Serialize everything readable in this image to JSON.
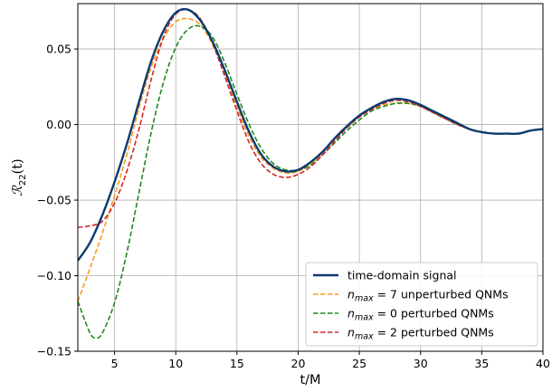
{
  "chart_data": {
    "type": "line",
    "xlabel": "t/M",
    "ylabel": "R22(t)",
    "ylabel_parts": {
      "main": "ℛ",
      "sub": "22",
      "arg": "(t)"
    },
    "xlim": [
      2,
      40
    ],
    "ylim": [
      -0.15,
      0.08
    ],
    "xticks": [
      5,
      10,
      15,
      20,
      25,
      30,
      35,
      40
    ],
    "xtick_labels": [
      "5",
      "10",
      "15",
      "20",
      "25",
      "30",
      "35",
      "40"
    ],
    "yticks": [
      -0.15,
      -0.1,
      -0.05,
      0.0,
      0.05
    ],
    "ytick_labels": [
      "−0.15",
      "−0.10",
      "−0.05",
      "0.00",
      "0.05"
    ],
    "grid": true,
    "legend_position": "lower-right",
    "series": [
      {
        "name": "time-domain signal",
        "label_parts": {
          "text": "time-domain signal"
        },
        "color": "#0b3a6f",
        "style": "solid",
        "x": [
          2,
          3,
          4,
          5,
          6,
          7,
          8,
          9,
          10,
          11,
          12,
          13,
          14,
          15,
          16,
          17,
          18,
          19,
          20,
          21,
          22,
          23,
          24,
          25,
          26,
          27,
          28,
          29,
          30,
          31,
          32,
          33,
          34,
          35,
          36,
          37,
          38,
          39,
          40
        ],
        "y": [
          -0.09,
          -0.078,
          -0.06,
          -0.038,
          -0.013,
          0.015,
          0.042,
          0.062,
          0.074,
          0.076,
          0.069,
          0.055,
          0.036,
          0.015,
          -0.005,
          -0.02,
          -0.028,
          -0.031,
          -0.03,
          -0.025,
          -0.018,
          -0.009,
          -0.001,
          0.006,
          0.011,
          0.015,
          0.017,
          0.016,
          0.013,
          0.009,
          0.005,
          0.001,
          -0.003,
          -0.005,
          -0.006,
          -0.006,
          -0.006,
          -0.004,
          -0.003
        ]
      },
      {
        "name": "n_max = 7 unperturbed QNMs",
        "label_parts": {
          "math": "n",
          "sub": "max",
          "rest": " = 7 unperturbed QNMs"
        },
        "color": "#f39c1f",
        "style": "dashed",
        "x": [
          2,
          3,
          4,
          5,
          6,
          7,
          8,
          9,
          10,
          11,
          12,
          13,
          14,
          15,
          16,
          17,
          18,
          19,
          20,
          21,
          22,
          23,
          24,
          25,
          26,
          27,
          28,
          29,
          30,
          31,
          32,
          33,
          34,
          35,
          36,
          37,
          38,
          39,
          40
        ],
        "y": [
          -0.117,
          -0.095,
          -0.072,
          -0.047,
          -0.02,
          0.011,
          0.038,
          0.057,
          0.068,
          0.07,
          0.066,
          0.053,
          0.034,
          0.012,
          -0.008,
          -0.022,
          -0.029,
          -0.032,
          -0.031,
          -0.026,
          -0.019,
          -0.01,
          -0.002,
          0.005,
          0.01,
          0.013,
          0.014,
          0.014,
          0.012,
          0.008,
          0.004,
          0.0,
          -0.003,
          -0.005,
          -0.006,
          -0.006,
          -0.006,
          -0.004,
          -0.003
        ]
      },
      {
        "name": "n_max = 0 perturbed QNMs",
        "label_parts": {
          "math": "n",
          "sub": "max",
          "rest": " = 0 perturbed QNMs"
        },
        "color": "#1e8a1e",
        "style": "dashed",
        "x": [
          2,
          3,
          3.5,
          4,
          5,
          6,
          7,
          8,
          9,
          10,
          11,
          12,
          13,
          14,
          15,
          16,
          17,
          18,
          19,
          20,
          21,
          22,
          23,
          24,
          25,
          26,
          27,
          28,
          29,
          30,
          31,
          32,
          33,
          34,
          35,
          36,
          37,
          38,
          39,
          40
        ],
        "y": [
          -0.117,
          -0.138,
          -0.141,
          -0.138,
          -0.118,
          -0.085,
          -0.045,
          -0.005,
          0.028,
          0.051,
          0.063,
          0.065,
          0.058,
          0.041,
          0.02,
          0.0,
          -0.016,
          -0.026,
          -0.03,
          -0.03,
          -0.027,
          -0.02,
          -0.012,
          -0.004,
          0.003,
          0.009,
          0.012,
          0.014,
          0.014,
          0.012,
          0.008,
          0.004,
          0.0,
          -0.003,
          -0.005,
          -0.006,
          -0.006,
          -0.006,
          -0.004,
          -0.003
        ]
      },
      {
        "name": "n_max = 2 perturbed QNMs",
        "label_parts": {
          "math": "n",
          "sub": "max",
          "rest": " = 2 perturbed QNMs"
        },
        "color": "#d62728",
        "style": "dashed",
        "x": [
          2,
          3,
          4,
          5,
          6,
          7,
          8,
          9,
          10,
          11,
          12,
          13,
          14,
          15,
          16,
          17,
          18,
          19,
          20,
          21,
          22,
          23,
          24,
          25,
          26,
          27,
          28,
          29,
          30,
          31,
          32,
          33,
          34,
          35,
          36,
          37,
          38,
          39,
          40
        ],
        "y": [
          -0.068,
          -0.067,
          -0.064,
          -0.052,
          -0.031,
          -0.003,
          0.03,
          0.058,
          0.073,
          0.076,
          0.07,
          0.054,
          0.032,
          0.009,
          -0.012,
          -0.026,
          -0.033,
          -0.035,
          -0.033,
          -0.028,
          -0.02,
          -0.011,
          -0.002,
          0.005,
          0.01,
          0.014,
          0.016,
          0.015,
          0.012,
          0.008,
          0.004,
          0.0,
          -0.003,
          -0.005,
          -0.006,
          -0.006,
          -0.006,
          -0.004,
          -0.003
        ]
      }
    ]
  }
}
